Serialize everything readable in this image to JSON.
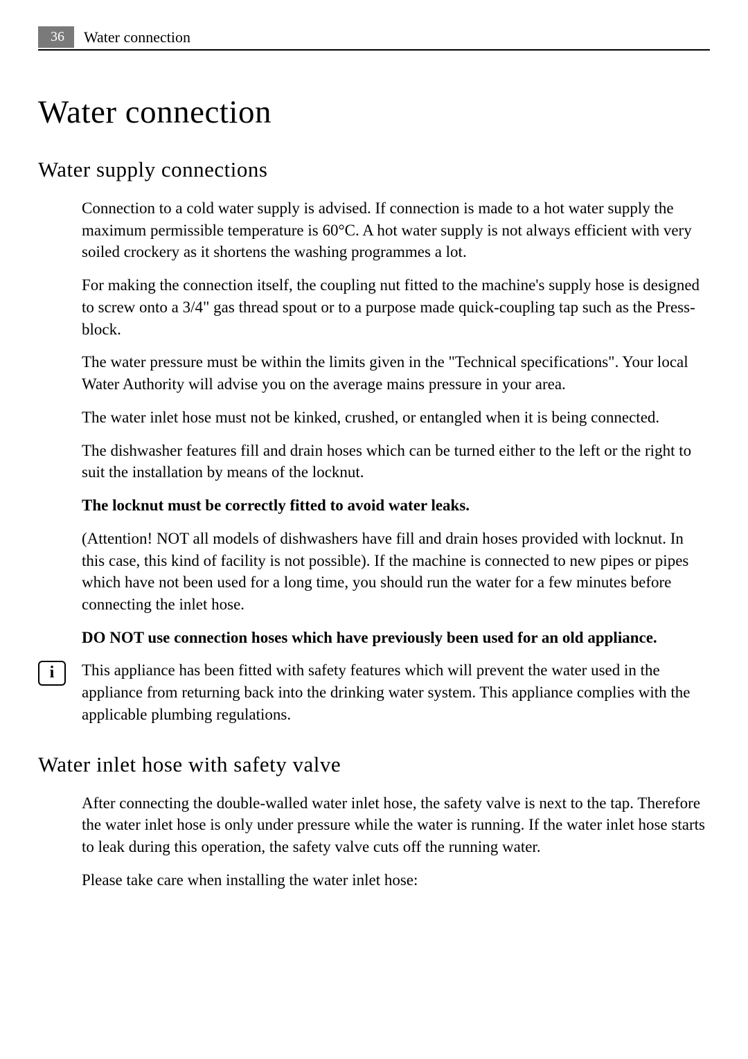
{
  "header": {
    "page_number": "36",
    "section_title": "Water connection"
  },
  "title": "Water connection",
  "section1": {
    "heading": "Water supply connections",
    "p1": "Connection to a cold water supply is advised. If connection is made to a hot water supply the maximum permissible temperature is 60°C. A hot water supply is not always efficient with very soiled crockery as it shortens the washing programmes a lot.",
    "p2": "For making the connection itself, the coupling nut fitted to the machine's supply hose is designed to screw onto a 3/4\" gas thread spout or to a purpose made quick-coupling tap such as the Press-block.",
    "p3": "The water pressure must be within the limits given in the \"Technical specifications\". Your local Water Authority will advise you on the average mains pressure in your area.",
    "p4": "The water inlet hose must not be kinked, crushed, or entangled when it is being connected.",
    "p5": "The dishwasher features fill and drain hoses which can be turned either to the left or the right to suit the installation by means of the locknut.",
    "bold1": "The locknut must be correctly fitted to avoid water leaks.",
    "p6": "(Attention! NOT all models of dishwashers have fill and drain hoses provided with locknut. In this case, this kind of facility is not possible). If the machine is connected to new pipes or pipes which have not been used for a long time, you should run the water for a few minutes before connecting the inlet hose.",
    "bold2": "DO NOT use connection hoses which have previously been used for an old appliance.",
    "info_text": "This appliance has been fitted with safety features which will prevent the water used in the appliance from returning back into the drinking water system. This appliance complies with the applicable plumbing regulations."
  },
  "section2": {
    "heading": "Water inlet hose with safety valve",
    "p1": "After connecting the double-walled water inlet hose, the safety valve is next to the tap. Therefore the water inlet hose is only under pressure while the water is running. If the water inlet hose starts to leak during this operation, the safety valve cuts off the running water.",
    "p2": "Please take care when installing the water inlet hose:"
  },
  "colors": {
    "page_num_bg": "#7a7a7a",
    "page_num_text": "#ffffff",
    "rule": "#000000",
    "body_text": "#000000",
    "background": "#ffffff"
  },
  "typography": {
    "h1_size": 47,
    "h2_size": 31,
    "body_size": 23,
    "header_size": 22,
    "page_num_size": 20,
    "line_height": 1.38
  },
  "icons": {
    "info_glyph": "i"
  }
}
